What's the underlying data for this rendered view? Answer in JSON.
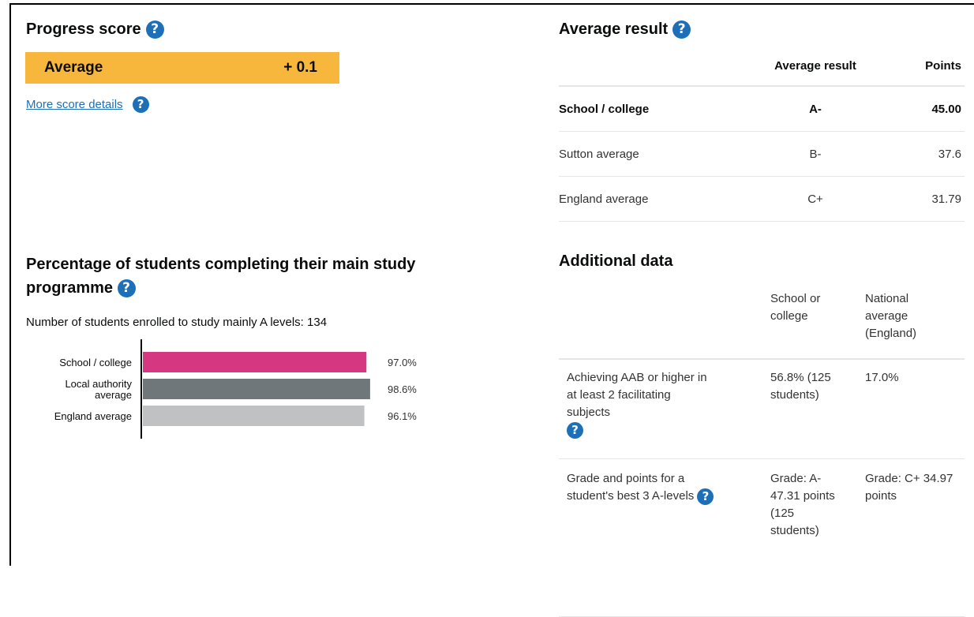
{
  "progress": {
    "title": "Progress score",
    "label": "Average",
    "value": "+ 0.1",
    "more_link": "More score details",
    "bar_color": "#f6b73c"
  },
  "average_result": {
    "title": "Average result",
    "headers": [
      "",
      "Average result",
      "Points"
    ],
    "rows": [
      {
        "name": "School / college",
        "grade": "A-",
        "points": "45.00"
      },
      {
        "name": "Sutton average",
        "grade": "B-",
        "points": "37.6"
      },
      {
        "name": "England average",
        "grade": "C+",
        "points": "31.79"
      }
    ]
  },
  "completion": {
    "title": "Percentage of students completing their main study programme",
    "enrolled_text": "Number of students enrolled to study mainly A levels: 134"
  },
  "chart_data": {
    "type": "bar",
    "orientation": "horizontal",
    "categories": [
      "School / college",
      "Local authority average",
      "England average"
    ],
    "values": [
      97.0,
      98.6,
      96.1
    ],
    "value_labels": [
      "97.0%",
      "98.6%",
      "96.1%"
    ],
    "colors": [
      "#d53880",
      "#6f777b",
      "#bfc1c3"
    ],
    "xlim": [
      0,
      100
    ]
  },
  "additional": {
    "title": "Additional data",
    "headers": [
      "",
      "School or college",
      "National average (England)"
    ],
    "rows": [
      {
        "label": "Achieving AAB or higher in at least 2 facilitating subjects",
        "school": "56.8% (125 students)",
        "national": "17.0%"
      },
      {
        "label": "Grade and points for a student's best 3 A-levels",
        "school": "Grade: A- 47.31 points (125 students)",
        "national": "Grade: C+ 34.97 points"
      }
    ]
  },
  "icons": {
    "help": "?"
  }
}
